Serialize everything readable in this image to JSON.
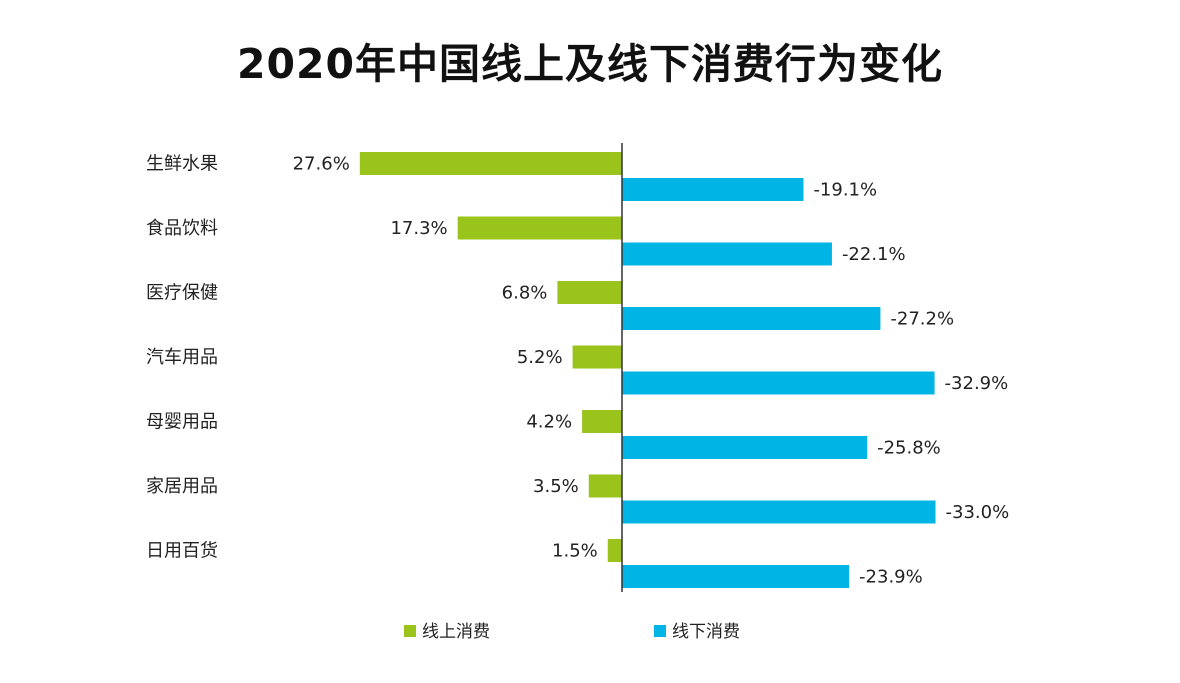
{
  "chart_data": {
    "type": "bar",
    "orientation": "horizontal",
    "title": "2020年中国线上及线下消费行为变化",
    "categories": [
      "生鲜水果",
      "食品饮料",
      "医疗保健",
      "汽车用品",
      "母婴用品",
      "家居用品",
      "日用百货"
    ],
    "series": [
      {
        "name": "线上消费",
        "color": "#9ac31c",
        "values": [
          27.6,
          17.3,
          6.8,
          5.2,
          4.2,
          3.5,
          1.5
        ],
        "labels": [
          "27.6%",
          "17.3%",
          "6.8%",
          "5.2%",
          "4.2%",
          "3.5%",
          "1.5%"
        ]
      },
      {
        "name": "线下消费",
        "color": "#00b4e6",
        "values": [
          -19.1,
          -22.1,
          -27.2,
          -32.9,
          -25.8,
          -33.0,
          -23.9
        ],
        "labels": [
          "-19.1%",
          "-22.1%",
          "-27.2%",
          "-32.9%",
          "-25.8%",
          "-33.0%",
          "-23.9%"
        ]
      }
    ],
    "legend_position": "bottom",
    "grid": false
  }
}
